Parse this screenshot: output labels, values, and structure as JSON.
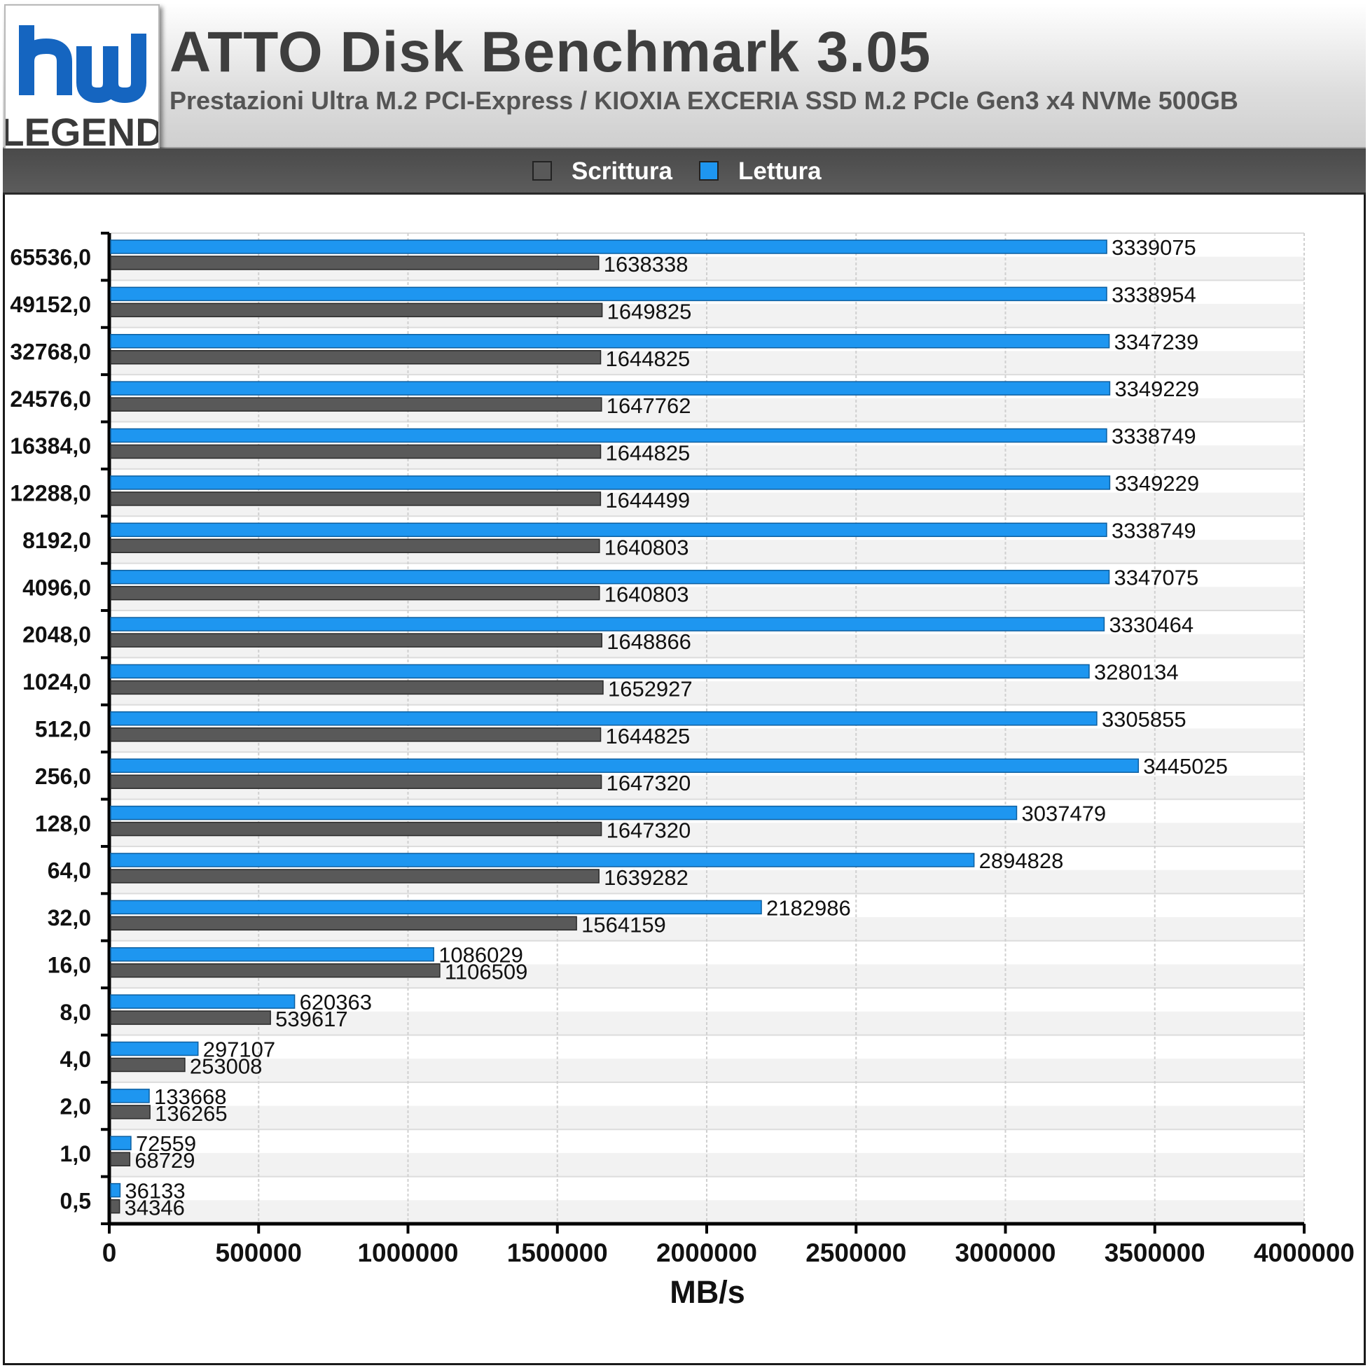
{
  "header": {
    "title": "ATTO Disk Benchmark 3.05",
    "subtitle": "Prestazioni Ultra M.2 PCI-Express / KIOXIA EXCERIA SSD M.2 PCIe Gen3 x4 NVMe 500GB",
    "logo_text": "LEGEND"
  },
  "legend": {
    "items": [
      {
        "label": "Scrittura",
        "color": "#595959"
      },
      {
        "label": "Lettura",
        "color": "#1e96f0"
      }
    ]
  },
  "colors": {
    "write": "#595959",
    "read": "#1e96f0",
    "logo_blue": "#1565c0"
  },
  "chart_data": {
    "type": "bar",
    "orientation": "horizontal",
    "title": "ATTO Disk Benchmark 3.05",
    "subtitle": "Prestazioni Ultra M.2 PCI-Express / KIOXIA EXCERIA SSD M.2 PCIe Gen3 x4 NVMe 500GB",
    "xlabel": "MB/s",
    "ylabel": "",
    "xlim": [
      0,
      4000000
    ],
    "xticks": [
      "0",
      "500000",
      "1000000",
      "1500000",
      "2000000",
      "2500000",
      "3000000",
      "3500000",
      "4000000"
    ],
    "grid": true,
    "legend_position": "top",
    "categories": [
      "65536,0",
      "49152,0",
      "32768,0",
      "24576,0",
      "16384,0",
      "12288,0",
      "8192,0",
      "4096,0",
      "2048,0",
      "1024,0",
      "512,0",
      "256,0",
      "128,0",
      "64,0",
      "32,0",
      "16,0",
      "8,0",
      "4,0",
      "2,0",
      "1,0",
      "0,5"
    ],
    "series": [
      {
        "name": "Lettura",
        "color": "#1e96f0",
        "values": [
          3339075,
          3338954,
          3347239,
          3349229,
          3338749,
          3349229,
          3338749,
          3347075,
          3330464,
          3280134,
          3305855,
          3445025,
          3037479,
          2894828,
          2182986,
          1086029,
          620363,
          297107,
          133668,
          72559,
          36133
        ]
      },
      {
        "name": "Scrittura",
        "color": "#595959",
        "values": [
          1638338,
          1649825,
          1644825,
          1647762,
          1644825,
          1644499,
          1640803,
          1640803,
          1648866,
          1652927,
          1644825,
          1647320,
          1647320,
          1639282,
          1564159,
          1106509,
          539617,
          253008,
          136265,
          68729,
          34346
        ]
      }
    ]
  }
}
